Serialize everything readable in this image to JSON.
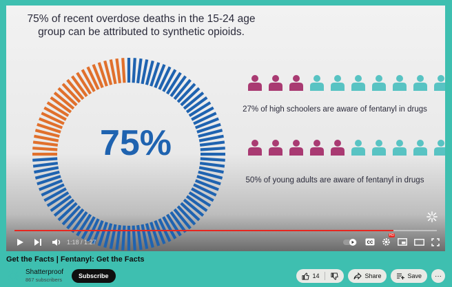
{
  "video": {
    "headline": "75% of recent overdose deaths in the 15-24 age group can be attributed to synthetic opioids.",
    "big_percent": "75%",
    "donut_fraction_highlighted": 0.25,
    "stat1_text": "27% of high schoolers are aware of fentanyl in drugs",
    "stat1_highlighted_people": 3,
    "stat2_text": "50% of young adults are aware of fentanyl in drugs",
    "stat2_highlighted_people": 5,
    "people_per_row": 10,
    "colors": {
      "donut_blue": "#1f63b0",
      "donut_orange": "#e0702c",
      "person_magenta": "#a93a72",
      "person_teal": "#58c3c3"
    }
  },
  "player": {
    "time": "1:18 / 1:27",
    "progress": 0.897,
    "icons": [
      "play-icon",
      "next-icon",
      "volume-icon",
      "autoplay-toggle-icon",
      "captions-icon",
      "settings-icon",
      "miniplayer-icon",
      "theater-icon",
      "fullscreen-icon"
    ],
    "settings_badge": "HD"
  },
  "title": "Get the Facts | Fentanyl: Get the Facts",
  "channel": {
    "name": "Shatterproof",
    "subscribers": "867 subscribers",
    "subscribe_label": "Subscribe"
  },
  "actions": {
    "like_count": "14",
    "share_label": "Share",
    "save_label": "Save",
    "more_label": "···"
  }
}
